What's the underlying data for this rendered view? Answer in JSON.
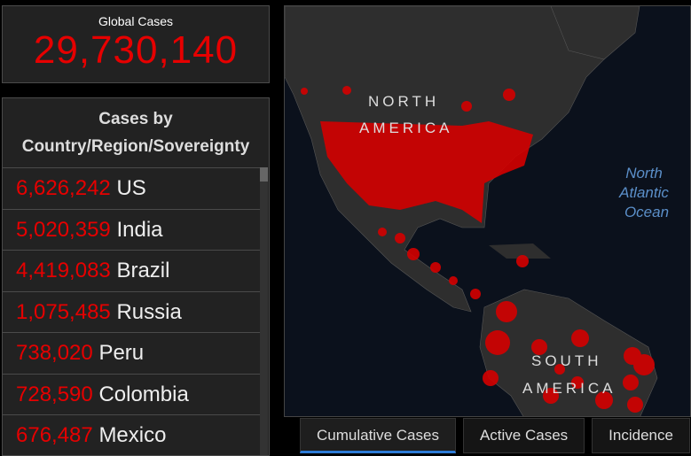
{
  "global_cases": {
    "label": "Global Cases",
    "value": "29,730,140"
  },
  "cases_panel": {
    "title_lines": [
      "Cases by",
      "Country/Region/Sovereignty"
    ],
    "rows": [
      {
        "count": "6,626,242",
        "name": "US"
      },
      {
        "count": "5,020,359",
        "name": "India"
      },
      {
        "count": "4,419,083",
        "name": "Brazil"
      },
      {
        "count": "1,075,485",
        "name": "Russia"
      },
      {
        "count": "738,020",
        "name": "Peru"
      },
      {
        "count": "728,590",
        "name": "Colombia"
      },
      {
        "count": "676,487",
        "name": "Mexico"
      }
    ]
  },
  "map": {
    "labels": {
      "north_america": [
        "NORTH",
        "AMERICA"
      ],
      "ocean": [
        "North",
        "Atlantic",
        "Ocean"
      ],
      "south_america": [
        "SOUTH",
        "AMERICA"
      ]
    }
  },
  "tabs": [
    "Cumulative Cases",
    "Active Cases",
    "Incidence"
  ]
}
